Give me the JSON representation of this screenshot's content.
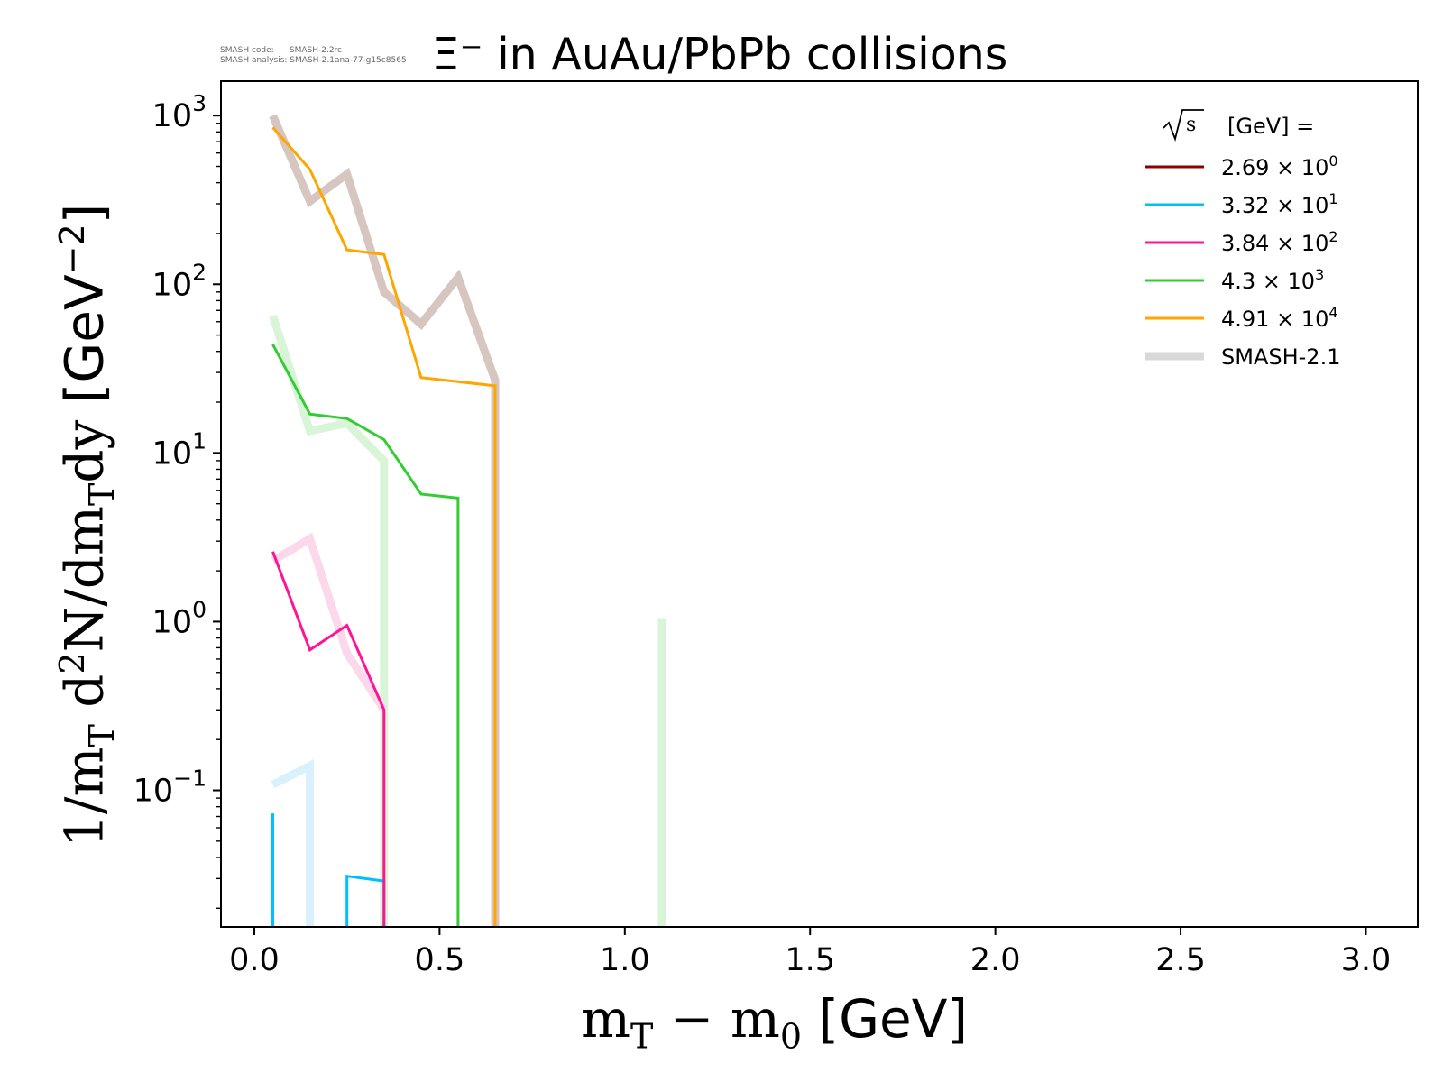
{
  "meta": {
    "line1": "SMASH code:      SMASH-2.2rc",
    "line2": "SMASH analysis: SMASH-2.1ana-77-g15c8565"
  },
  "chart_data": {
    "type": "line",
    "title": "Ξ⁻ in AuAu/PbPb collisions",
    "xlabel": "m_T − m_0 [GeV]",
    "xlabel_parts": {
      "a": "m",
      "a_sub": "T",
      "minus": " − ",
      "b": "m",
      "b_sub": "0",
      "unit": " [GeV]"
    },
    "ylabel": "1/m_T d²N/dm_Tdy [GeV⁻²]",
    "ylabel_parts": {
      "p1": "1/m",
      "p1_sub": "T",
      "p2": " d",
      "p2_sup": "2",
      "p3": "N/dm",
      "p3_sub": "T",
      "p4": "dy ",
      "unit": "[GeV",
      "unit_sup": "−2",
      "unit_end": "]"
    },
    "yscale": "log",
    "xlim": [
      -0.09,
      3.14
    ],
    "ylim": [
      0.0155,
      1600
    ],
    "xticks": [
      0.0,
      0.5,
      1.0,
      1.5,
      2.0,
      2.5,
      3.0
    ],
    "xtick_labels": [
      "0.0",
      "0.5",
      "1.0",
      "1.5",
      "2.0",
      "2.5",
      "3.0"
    ],
    "yticks": [
      0.1,
      1,
      10,
      100,
      1000
    ],
    "ytick_labels": [
      {
        "base": "10",
        "exp": "−1"
      },
      {
        "base": "10",
        "exp": "0"
      },
      {
        "base": "10",
        "exp": "1"
      },
      {
        "base": "10",
        "exp": "2"
      },
      {
        "base": "10",
        "exp": "3"
      }
    ],
    "legend_title": "[GeV] =",
    "legend_sqrt": "s",
    "legend_position": "top-right",
    "series": [
      {
        "name": "2.69 × 10⁰",
        "label_mant": "2.69 × 10",
        "label_exp": "0",
        "color": "#8b0000",
        "width": 3,
        "x": [],
        "y": []
      },
      {
        "name": "3.32 × 10¹",
        "label_mant": "3.32 × 10",
        "label_exp": "1",
        "color": "#00bfff",
        "width": 3,
        "segments": [
          {
            "x": [
              0.05,
              0.05
            ],
            "y": [
              0.073,
              0.0155
            ]
          },
          {
            "x": [
              0.25,
              0.25,
              0.35,
              0.35
            ],
            "y": [
              0.0155,
              0.031,
              0.029,
              0.0155
            ]
          }
        ]
      },
      {
        "name": "3.84 × 10²",
        "label_mant": "3.84 × 10",
        "label_exp": "2",
        "color": "#ff1493",
        "width": 3,
        "segments": [
          {
            "x": [
              0.05,
              0.15,
              0.25,
              0.35,
              0.35
            ],
            "y": [
              2.6,
              0.68,
              0.95,
              0.3,
              0.0155
            ]
          }
        ]
      },
      {
        "name": "4.3 × 10³",
        "label_mant": "4.3 × 10",
        "label_exp": "3",
        "color": "#32cd32",
        "width": 3,
        "segments": [
          {
            "x": [
              0.05,
              0.15,
              0.25,
              0.35,
              0.45,
              0.55,
              0.55
            ],
            "y": [
              44,
              17,
              16,
              12,
              5.7,
              5.4,
              0.0155
            ]
          }
        ]
      },
      {
        "name": "4.91 × 10⁴",
        "label_mant": "4.91 × 10",
        "label_exp": "4",
        "color": "#ffa500",
        "width": 3,
        "segments": [
          {
            "x": [
              0.05,
              0.15,
              0.25,
              0.35,
              0.45,
              0.65,
              0.65
            ],
            "y": [
              850,
              480,
              160,
              150,
              28,
              25,
              0.0155
            ]
          }
        ]
      }
    ],
    "reference": {
      "name": "SMASH-2.1",
      "legend_color": "#d9d9d9",
      "width": 9,
      "curves": [
        {
          "color": "#d7c6c0",
          "segments": [
            {
              "x": [
                0.05,
                0.15,
                0.25,
                0.35,
                0.45,
                0.55,
                0.65,
                0.65
              ],
              "y": [
                1000,
                310,
                450,
                90,
                58,
                110,
                27,
                0.0155
              ]
            }
          ]
        },
        {
          "color": "#d8f5d8",
          "segments": [
            {
              "x": [
                0.05,
                0.15,
                0.25,
                0.35,
                0.35
              ],
              "y": [
                65,
                13.5,
                15,
                9,
                0.0155
              ]
            },
            {
              "x": [
                1.1,
                1.1
              ],
              "y": [
                1.05,
                0.0155
              ]
            }
          ]
        },
        {
          "color": "#fcd9ea",
          "segments": [
            {
              "x": [
                0.05,
                0.15,
                0.25,
                0.35
              ],
              "y": [
                2.3,
                3.1,
                0.65,
                0.3
              ]
            }
          ]
        },
        {
          "color": "#d9f1fc",
          "segments": [
            {
              "x": [
                0.05,
                0.15,
                0.15
              ],
              "y": [
                0.108,
                0.14,
                0.0155
              ]
            }
          ]
        }
      ]
    }
  }
}
